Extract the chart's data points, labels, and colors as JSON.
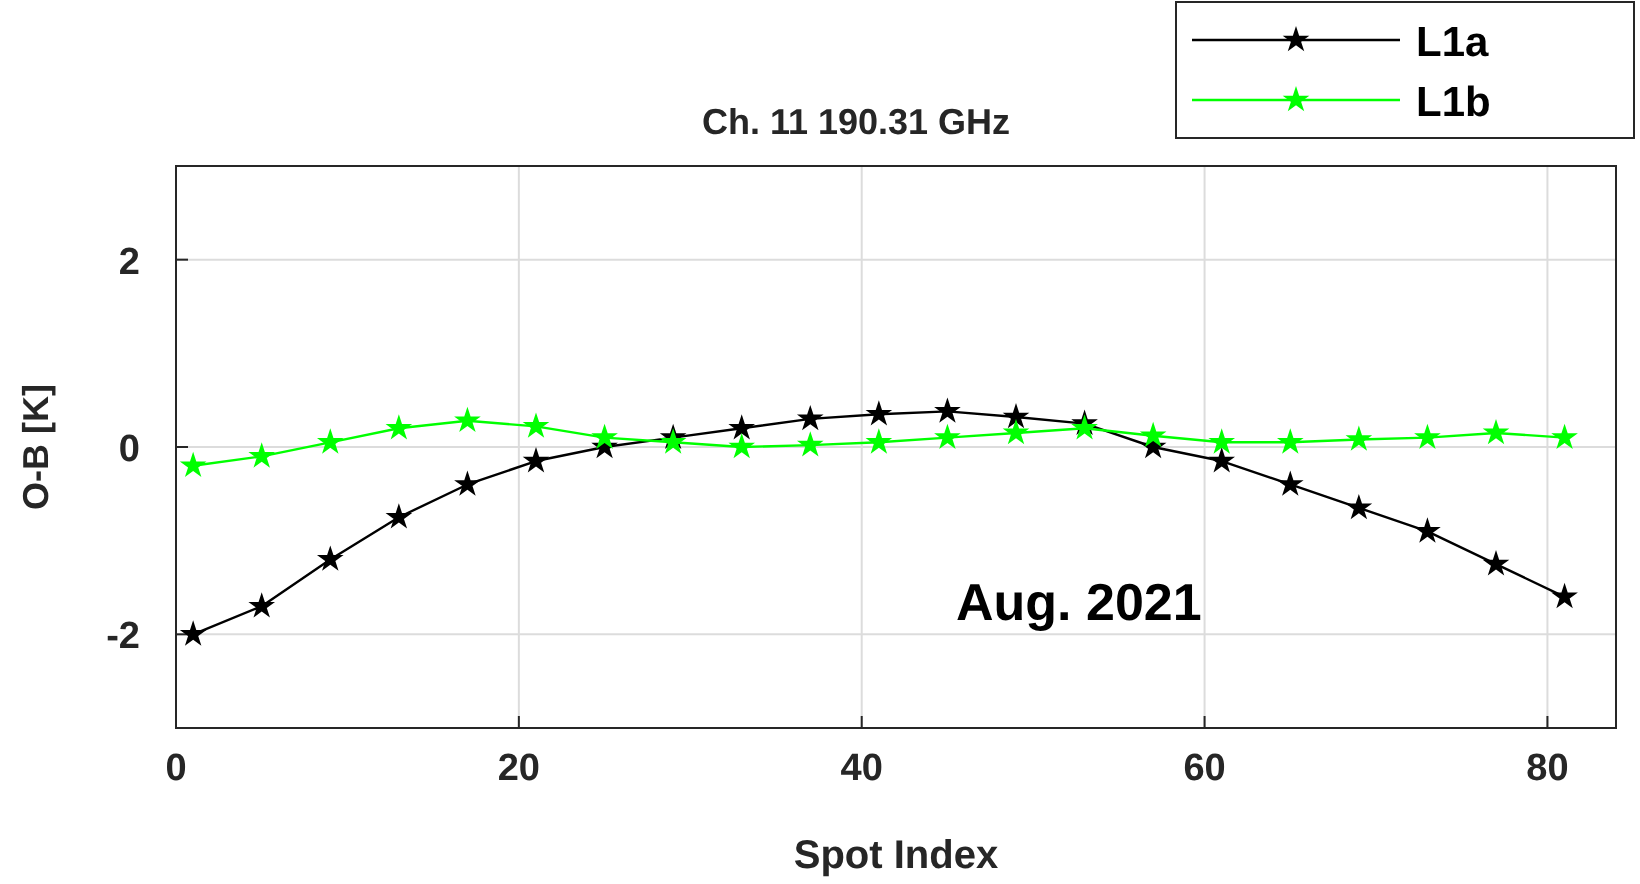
{
  "chart_data": {
    "type": "line",
    "title": "Ch. 11 190.31 GHz",
    "xlabel": "Spot Index",
    "ylabel": "O-B [K]",
    "xlim": [
      0,
      84
    ],
    "xticks": [
      0,
      20,
      40,
      60,
      80
    ],
    "ylim": [
      -3,
      3
    ],
    "yticks": [
      -2,
      0,
      2
    ],
    "grid": true,
    "legend": "top right",
    "marker": "star",
    "line_style": "solid",
    "annotations": [
      "Aug. 2021"
    ],
    "series": [
      {
        "name": "L1a",
        "color": "#000000",
        "x": [
          1,
          5,
          9,
          13,
          17,
          21,
          25,
          29,
          33,
          37,
          41,
          45,
          49,
          53,
          57,
          61,
          65,
          69,
          73,
          77,
          81
        ],
        "values": [
          -2.0,
          -1.7,
          -1.2,
          -0.75,
          -0.4,
          -0.15,
          0.0,
          0.1,
          0.2,
          0.3,
          0.35,
          0.38,
          0.32,
          0.25,
          0.0,
          -0.15,
          -0.4,
          -0.65,
          -0.9,
          -1.25,
          -1.6
        ]
      },
      {
        "name": "L1b",
        "color": "#00ff00",
        "x": [
          1,
          5,
          9,
          13,
          17,
          21,
          25,
          29,
          33,
          37,
          41,
          45,
          49,
          53,
          57,
          61,
          65,
          69,
          73,
          77,
          81
        ],
        "values": [
          -0.2,
          -0.1,
          0.05,
          0.2,
          0.28,
          0.22,
          0.1,
          0.05,
          0.0,
          0.02,
          0.05,
          0.1,
          0.15,
          0.2,
          0.12,
          0.05,
          0.05,
          0.08,
          0.1,
          0.15,
          0.1
        ]
      }
    ]
  }
}
